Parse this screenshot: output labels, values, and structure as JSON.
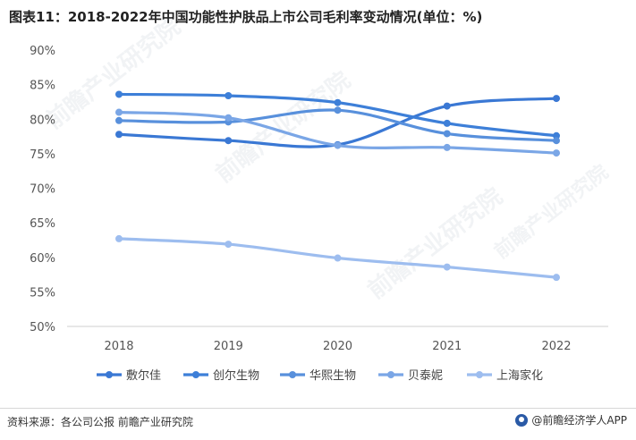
{
  "header": {
    "title": "图表11：2018-2022年中国功能性护肤品上市公司毛利率变动情况(单位：%)"
  },
  "footer": {
    "source": "资料来源：各公司公报 前瞻产业研究院",
    "brand": "@前瞻经济学人APP"
  },
  "watermark": {
    "text": "前瞻产业研究院"
  },
  "chart_data": {
    "type": "line",
    "title": "图表11：2018-2022年中国功能性护肤品上市公司毛利率变动情况(单位：%)",
    "categories": [
      "2018",
      "2019",
      "2020",
      "2021",
      "2022"
    ],
    "ylim": [
      50,
      90
    ],
    "yticks": [
      50,
      55,
      60,
      65,
      70,
      75,
      80,
      85,
      90
    ],
    "ytick_labels": [
      "50%",
      "55%",
      "60%",
      "65%",
      "70%",
      "75%",
      "80%",
      "85%",
      "90%"
    ],
    "grid": false,
    "legend": "bottom",
    "series": [
      {
        "name": "敷尔佳",
        "color": "#3a78d4",
        "values": [
          77.8,
          76.9,
          76.3,
          81.9,
          83.0
        ]
      },
      {
        "name": "创尔生物",
        "color": "#3d7fd8",
        "values": [
          83.6,
          83.4,
          82.4,
          79.4,
          77.6
        ]
      },
      {
        "name": "华熙生物",
        "color": "#5890dc",
        "values": [
          79.8,
          79.6,
          81.3,
          77.9,
          76.9
        ]
      },
      {
        "name": "贝泰妮",
        "color": "#7aa6e6",
        "values": [
          81.0,
          80.2,
          76.2,
          75.9,
          75.1
        ]
      },
      {
        "name": "上海家化",
        "color": "#9dbdef",
        "values": [
          62.7,
          61.9,
          59.9,
          58.6,
          57.1
        ]
      }
    ]
  }
}
